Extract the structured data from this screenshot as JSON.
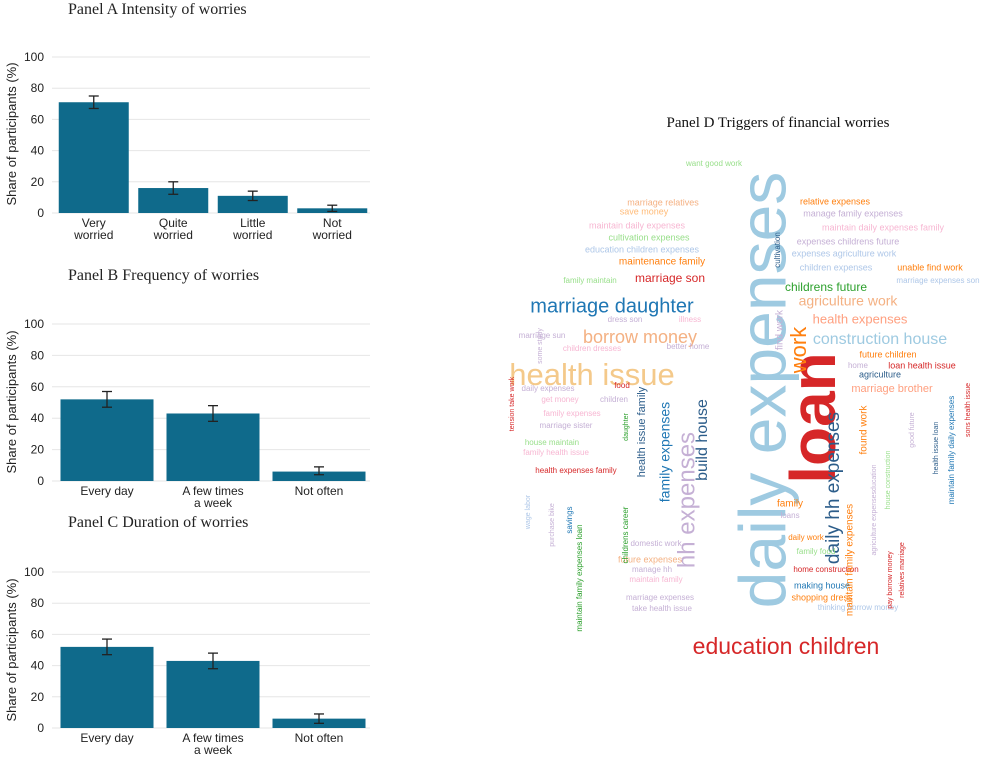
{
  "chart_data": [
    {
      "type": "bar",
      "title": "Panel A  Intensity of worries",
      "ylabel": "Share of participants (%)",
      "ylim": [
        0,
        100
      ],
      "yticks": [
        0,
        20,
        40,
        60,
        80,
        100
      ],
      "grid": true,
      "categories": [
        [
          "Very",
          "worried"
        ],
        [
          "Quite",
          "worried"
        ],
        [
          "Little",
          "worried"
        ],
        [
          "Not",
          "worried"
        ]
      ],
      "values": [
        71,
        16,
        11,
        3
      ],
      "error_low": [
        67,
        12,
        8,
        1
      ],
      "error_high": [
        75,
        20,
        14,
        5
      ]
    },
    {
      "type": "bar",
      "title": "Panel B  Frequency of worries",
      "ylabel": "Share of participants (%)",
      "ylim": [
        0,
        100
      ],
      "yticks": [
        0,
        20,
        40,
        60,
        80,
        100
      ],
      "grid": true,
      "categories": [
        [
          "Every day"
        ],
        [
          "A few times",
          "a week"
        ],
        [
          "Not often"
        ]
      ],
      "values": [
        52,
        43,
        6
      ],
      "error_low": [
        47,
        38,
        4
      ],
      "error_high": [
        57,
        48,
        9
      ]
    },
    {
      "type": "bar",
      "title": "Panel C  Duration of worries",
      "ylabel": "Share of participants (%)",
      "ylim": [
        0,
        100
      ],
      "yticks": [
        0,
        20,
        40,
        60,
        80,
        100
      ],
      "grid": true,
      "categories": [
        [
          "Every day"
        ],
        [
          "A few times",
          "a week"
        ],
        [
          "Not often"
        ]
      ],
      "values": [
        52,
        43,
        6
      ],
      "error_low": [
        47,
        38,
        3
      ],
      "error_high": [
        57,
        48,
        9
      ]
    },
    {
      "type": "wordcloud",
      "title": "Panel D Triggers of financial worries",
      "words": [
        {
          "text": "daily expenses",
          "color": "#9ecae1"
        },
        {
          "text": "loan",
          "color": "#d62728"
        },
        {
          "text": "education children",
          "color": "#d62728"
        },
        {
          "text": "health issue",
          "color": "#f4c98a"
        },
        {
          "text": "marriage daughter",
          "color": "#1f77b4"
        },
        {
          "text": "borrow money",
          "color": "#f4b183"
        },
        {
          "text": "hh expenses",
          "color": "#c5b0d5"
        },
        {
          "text": "daily hh expenses",
          "color": "#2c5d8a"
        },
        {
          "text": "work",
          "color": "#ff7f0e"
        },
        {
          "text": "agriculture work",
          "color": "#f4b183"
        },
        {
          "text": "construction house",
          "color": "#9ecae1"
        },
        {
          "text": "health expenses",
          "color": "#ff9f7f"
        },
        {
          "text": "build house",
          "color": "#2c5d8a"
        },
        {
          "text": "family expenses",
          "color": "#1f77b4"
        },
        {
          "text": "childrens future",
          "color": "#2ca02c"
        },
        {
          "text": "marriage son",
          "color": "#d62728"
        },
        {
          "text": "maintenance family",
          "color": "#ff7f0e"
        },
        {
          "text": "want good work",
          "color": "#98df8a"
        },
        {
          "text": "marriage relatives",
          "color": "#f4b183"
        },
        {
          "text": "save money",
          "color": "#ffbb78"
        },
        {
          "text": "maintain daily expenses",
          "color": "#f7b6d2"
        },
        {
          "text": "cultivation expenses",
          "color": "#98df8a"
        },
        {
          "text": "education children expenses",
          "color": "#aec7e8"
        },
        {
          "text": "relative expenses",
          "color": "#ff7f0e"
        },
        {
          "text": "manage family expenses",
          "color": "#c5b0d5"
        },
        {
          "text": "maintain daily expenses family",
          "color": "#f7b6d2"
        },
        {
          "text": "expenses childrens future",
          "color": "#c5b0d5"
        },
        {
          "text": "expenses agriculture work",
          "color": "#aec7e8"
        },
        {
          "text": "children expenses",
          "color": "#aec7e8"
        },
        {
          "text": "unable find work",
          "color": "#ff7f0e"
        },
        {
          "text": "family maintain",
          "color": "#98df8a"
        },
        {
          "text": "marriage expenses son",
          "color": "#aec7e8"
        },
        {
          "text": "dress son",
          "color": "#c5b0d5"
        },
        {
          "text": "illness",
          "color": "#f7b6d2"
        },
        {
          "text": "marriage sun",
          "color": "#c5b0d5"
        },
        {
          "text": "better home",
          "color": "#c5b0d5"
        },
        {
          "text": "children dresses",
          "color": "#f7b6d2"
        },
        {
          "text": "future children",
          "color": "#ff7f0e"
        },
        {
          "text": "loan health issue",
          "color": "#d62728"
        },
        {
          "text": "home",
          "color": "#c5b0d5"
        },
        {
          "text": "agriculture",
          "color": "#2c5d8a"
        },
        {
          "text": "marriage brother",
          "color": "#ff9f7f"
        },
        {
          "text": "daily expenses",
          "color": "#c5b0d5"
        },
        {
          "text": "get money",
          "color": "#f7b6d2"
        },
        {
          "text": "food",
          "color": "#d62728"
        },
        {
          "text": "children",
          "color": "#c5b0d5"
        },
        {
          "text": "family expenses",
          "color": "#f7b6d2"
        },
        {
          "text": "marriage sister",
          "color": "#c5b0d5"
        },
        {
          "text": "house maintain",
          "color": "#98df8a"
        },
        {
          "text": "family health issue",
          "color": "#f7b6d2"
        },
        {
          "text": "health expenses family",
          "color": "#d62728"
        },
        {
          "text": "health issue family",
          "color": "#2c5d8a"
        },
        {
          "text": "family",
          "color": "#ff7f0e"
        },
        {
          "text": "loans",
          "color": "#c5b0d5"
        },
        {
          "text": "daily work",
          "color": "#ff7f0e"
        },
        {
          "text": "family food",
          "color": "#98df8a"
        },
        {
          "text": "home construction",
          "color": "#d62728"
        },
        {
          "text": "making house",
          "color": "#1f77b4"
        },
        {
          "text": "shopping dress",
          "color": "#ff7f0e"
        },
        {
          "text": "thinking borrow money",
          "color": "#aec7e8"
        },
        {
          "text": "domestic work",
          "color": "#c5b0d5"
        },
        {
          "text": "future expenses",
          "color": "#f4b183"
        },
        {
          "text": "manage hh",
          "color": "#c5b0d5"
        },
        {
          "text": "maintain family",
          "color": "#f7b6d2"
        },
        {
          "text": "marriage expenses",
          "color": "#c5b0d5"
        },
        {
          "text": "take health issue",
          "color": "#c5b0d5"
        },
        {
          "text": "find work",
          "color": "#c5b0d5"
        },
        {
          "text": "tension take work",
          "color": "#d62728"
        },
        {
          "text": "wage labor",
          "color": "#aec7e8"
        },
        {
          "text": "purchase bike",
          "color": "#c5b0d5"
        },
        {
          "text": "savings",
          "color": "#1f77b4"
        },
        {
          "text": "maintain family expenses loan",
          "color": "#2ca02c"
        },
        {
          "text": "childrens career",
          "color": "#2ca02c"
        },
        {
          "text": "daughter",
          "color": "#2ca02c"
        },
        {
          "text": "maintain family daily expenses",
          "color": "#1f77b4"
        },
        {
          "text": "sons health issue",
          "color": "#d62728"
        },
        {
          "text": "pay borrow money",
          "color": "#d62728"
        },
        {
          "text": "relatives marriage",
          "color": "#d62728"
        },
        {
          "text": "cultivation",
          "color": "#2c5d8a"
        },
        {
          "text": "found work",
          "color": "#ff7f0e"
        },
        {
          "text": "health issue loan",
          "color": "#2c5d8a"
        },
        {
          "text": "maintain family expenses",
          "color": "#ff7f0e"
        },
        {
          "text": "some study",
          "color": "#c5b0d5"
        },
        {
          "text": "house construction",
          "color": "#98df8a"
        },
        {
          "text": "agriculture expensesducation",
          "color": "#c5b0d5"
        },
        {
          "text": "good future",
          "color": "#c5b0d5"
        }
      ]
    }
  ]
}
